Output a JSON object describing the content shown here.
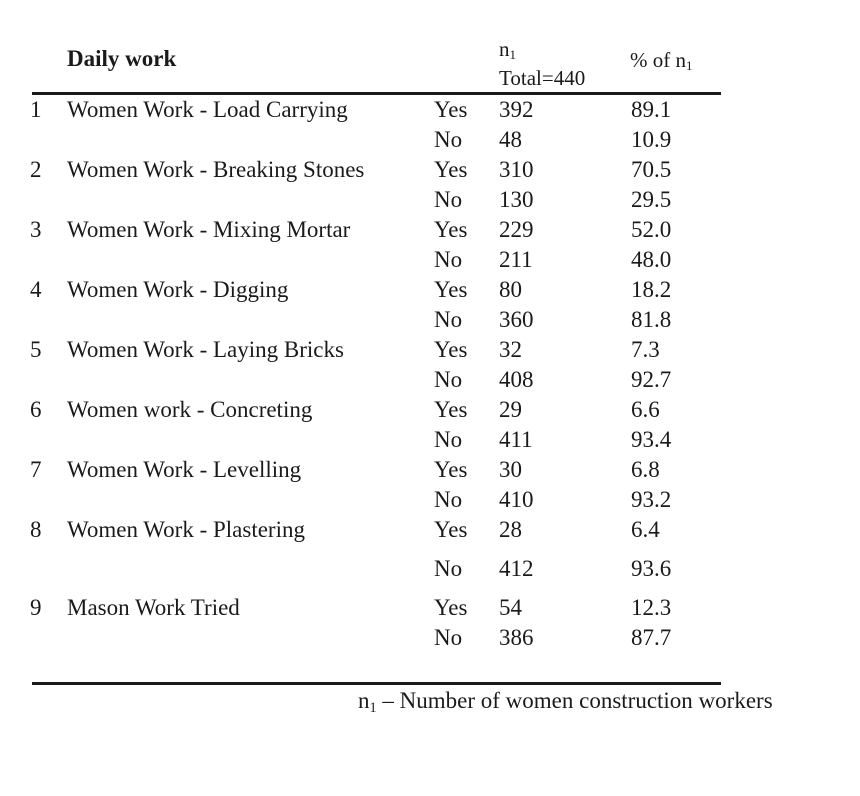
{
  "header": {
    "title": "Daily work",
    "n_symbol": "n",
    "n_sub": "1",
    "total": "Total=440",
    "pct_prefix": "% of n",
    "pct_sub": "1"
  },
  "rows": [
    {
      "num": "1",
      "label": "Women Work - Load Carrying",
      "yes_count": "392",
      "yes_pct": "89.1",
      "no_count": "48",
      "no_pct": "10.9"
    },
    {
      "num": "2",
      "label": "Women Work - Breaking Stones",
      "yes_count": "310",
      "yes_pct": "70.5",
      "no_count": "130",
      "no_pct": "29.5"
    },
    {
      "num": "3",
      "label": "Women Work - Mixing Mortar",
      "yes_count": "229",
      "yes_pct": "52.0",
      "no_count": "211",
      "no_pct": "48.0"
    },
    {
      "num": "4",
      "label": "Women Work - Digging",
      "yes_count": "80",
      "yes_pct": "18.2",
      "no_count": "360",
      "no_pct": "81.8"
    },
    {
      "num": "5",
      "label": "Women Work - Laying Bricks",
      "yes_count": "32",
      "yes_pct": "7.3",
      "no_count": "408",
      "no_pct": "92.7"
    },
    {
      "num": "6",
      "label": "Women work - Concreting",
      "yes_count": "29",
      "yes_pct": "6.6",
      "no_count": "411",
      "no_pct": "93.4"
    },
    {
      "num": "7",
      "label": "Women Work - Levelling",
      "yes_count": "30",
      "yes_pct": "6.8",
      "no_count": "410",
      "no_pct": "93.2"
    },
    {
      "num": "8",
      "label": "Women Work - Plastering",
      "yes_count": "28",
      "yes_pct": "6.4",
      "no_count": "412",
      "no_pct": "93.6"
    },
    {
      "num": "9",
      "label": "Mason Work Tried",
      "yes_count": "54",
      "yes_pct": "12.3",
      "no_count": "386",
      "no_pct": "87.7"
    }
  ],
  "answers": {
    "yes": "Yes",
    "no": "No"
  },
  "footnote": {
    "symbol": "n",
    "sub": "1",
    "text": " – Number of women construction workers"
  }
}
